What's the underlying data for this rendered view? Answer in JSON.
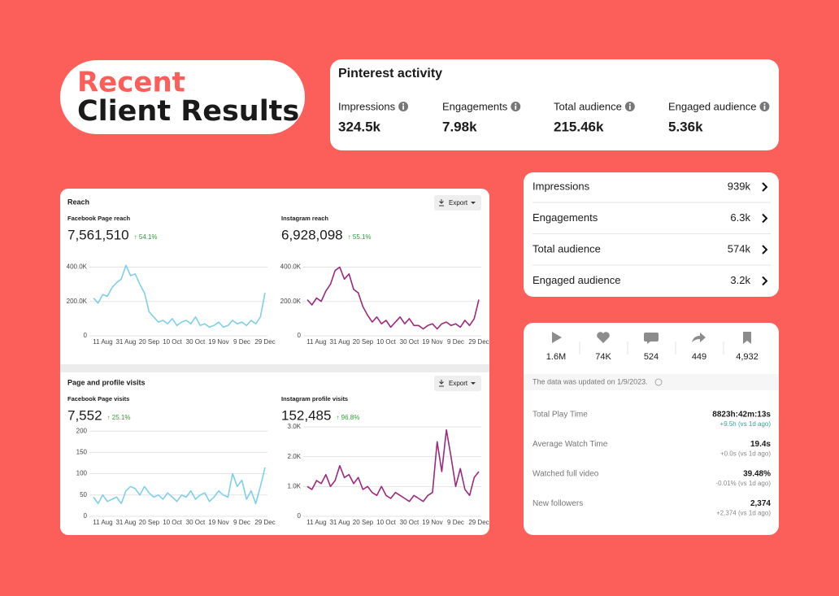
{
  "header": {
    "line1": "Recent",
    "line2": "Client Results"
  },
  "pinterest": {
    "title": "Pinterest activity",
    "metrics": [
      {
        "label": "Impressions",
        "value": "324.5k"
      },
      {
        "label": "Engagements",
        "value": "7.98k"
      },
      {
        "label": "Total audience",
        "value": "215.46k"
      },
      {
        "label": "Engaged audience",
        "value": "5.36k"
      }
    ]
  },
  "summary_list": [
    {
      "label": "Impressions",
      "value": "939k"
    },
    {
      "label": "Engagements",
      "value": "6.3k"
    },
    {
      "label": "Total audience",
      "value": "574k"
    },
    {
      "label": "Engaged audience",
      "value": "3.2k"
    }
  ],
  "tiktok": {
    "counts": [
      "1.6M",
      "74K",
      "524",
      "449",
      "4,932"
    ],
    "note": "The data was updated on 1/9/2023.",
    "rows": [
      {
        "label": "Total Play Time",
        "value": "8823h:42m:13s",
        "delta": "+9.5h (vs 1d ago)"
      },
      {
        "label": "Average Watch Time",
        "value": "19.4s",
        "delta": "+0.0s (vs 1d ago)"
      },
      {
        "label": "Watched full video",
        "value": "39.48%",
        "delta": "-0.01% (vs 1d ago)"
      },
      {
        "label": "New followers",
        "value": "2,374",
        "delta": "+2,374 (vs 1d ago)"
      }
    ]
  },
  "meta_panel": {
    "section1": "Reach",
    "section2": "Page and profile visits",
    "export": "Export"
  },
  "chart_data": [
    {
      "type": "line",
      "title": "Facebook Page reach",
      "total": "7,561,510",
      "change": "↑ 54.1%",
      "color": "#7fcfe8",
      "categories": [
        null,
        null,
        "11 Aug",
        null,
        null,
        null,
        null,
        "31 Aug",
        null,
        null,
        null,
        null,
        "20 Sep",
        null,
        null,
        null,
        null,
        "10 Oct",
        null,
        null,
        null,
        null,
        "30 Oct",
        null,
        null,
        null,
        null,
        "19 Nov",
        null,
        null,
        null,
        null,
        "9 Dec",
        null,
        null,
        null,
        null,
        "29 Dec"
      ],
      "values": [
        220000,
        190000,
        240000,
        230000,
        280000,
        310000,
        330000,
        410000,
        350000,
        360000,
        300000,
        250000,
        140000,
        110000,
        80000,
        90000,
        70000,
        100000,
        60000,
        80000,
        90000,
        70000,
        110000,
        60000,
        70000,
        50000,
        60000,
        80000,
        50000,
        60000,
        90000,
        70000,
        80000,
        60000,
        90000,
        70000,
        110000,
        250000
      ],
      "ylim": [
        0,
        440000
      ],
      "yticks": [
        0,
        {
          "value": 200000,
          "label": "200.0K"
        },
        {
          "value": 400000,
          "label": "400.0K"
        }
      ],
      "grid": true
    },
    {
      "type": "line",
      "title": "Instagram reach",
      "total": "6,928,098",
      "change": "↑ 55.1%",
      "color": "#9b2a7d",
      "categories": [
        null,
        null,
        "11 Aug",
        null,
        null,
        null,
        null,
        "31 Aug",
        null,
        null,
        null,
        null,
        "20 Sep",
        null,
        null,
        null,
        null,
        "10 Oct",
        null,
        null,
        null,
        null,
        "30 Oct",
        null,
        null,
        null,
        null,
        "19 Nov",
        null,
        null,
        null,
        null,
        "9 Dec",
        null,
        null,
        null,
        null,
        "29 Dec"
      ],
      "values": [
        210000,
        180000,
        220000,
        200000,
        260000,
        300000,
        380000,
        400000,
        330000,
        360000,
        270000,
        250000,
        170000,
        120000,
        80000,
        110000,
        70000,
        90000,
        50000,
        80000,
        110000,
        70000,
        100000,
        60000,
        60000,
        40000,
        60000,
        70000,
        40000,
        70000,
        80000,
        60000,
        70000,
        50000,
        90000,
        60000,
        100000,
        210000
      ],
      "ylim": [
        0,
        440000
      ],
      "yticks": [
        0,
        {
          "value": 200000,
          "label": "200.0K"
        },
        {
          "value": 400000,
          "label": "400.0K"
        }
      ],
      "grid": true
    },
    {
      "type": "line",
      "title": "Facebook Page visits",
      "total": "7,552",
      "change": "↑ 25.1%",
      "color": "#7fcfe8",
      "categories": [
        null,
        null,
        "11 Aug",
        null,
        null,
        null,
        null,
        "31 Aug",
        null,
        null,
        null,
        null,
        "20 Sep",
        null,
        null,
        null,
        null,
        "10 Oct",
        null,
        null,
        null,
        null,
        "30 Oct",
        null,
        null,
        null,
        null,
        "19 Nov",
        null,
        null,
        null,
        null,
        "9 Dec",
        null,
        null,
        null,
        null,
        "29 Dec"
      ],
      "values": [
        45,
        30,
        50,
        35,
        40,
        45,
        30,
        60,
        70,
        65,
        50,
        70,
        55,
        45,
        50,
        40,
        55,
        45,
        35,
        50,
        45,
        60,
        40,
        50,
        55,
        35,
        45,
        60,
        50,
        45,
        100,
        70,
        85,
        40,
        60,
        30,
        70,
        115
      ],
      "ylim": [
        0,
        210
      ],
      "yticks": [
        0,
        50,
        100,
        150,
        200
      ],
      "grid": true
    },
    {
      "type": "line",
      "title": "Instagram profile visits",
      "total": "152,485",
      "change": "↑ 96.8%",
      "color": "#9b2a7d",
      "categories": [
        null,
        null,
        "11 Aug",
        null,
        null,
        null,
        null,
        "31 Aug",
        null,
        null,
        null,
        null,
        "20 Sep",
        null,
        null,
        null,
        null,
        "10 Oct",
        null,
        null,
        null,
        null,
        "30 Oct",
        null,
        null,
        null,
        null,
        "19 Nov",
        null,
        null,
        null,
        null,
        "9 Dec",
        null,
        null,
        null,
        null,
        "29 Dec"
      ],
      "values": [
        1000,
        900,
        1200,
        1100,
        1400,
        1000,
        1200,
        1700,
        1300,
        1400,
        1100,
        1300,
        900,
        1000,
        800,
        700,
        1000,
        700,
        600,
        800,
        700,
        600,
        500,
        700,
        600,
        500,
        700,
        800,
        2500,
        1500,
        2900,
        2000,
        1000,
        1600,
        900,
        700,
        1300,
        1500
      ],
      "ylim": [
        0,
        3000
      ],
      "yticks": [
        0,
        {
          "value": 1000,
          "label": "1.0K"
        },
        {
          "value": 2000,
          "label": "2.0K"
        },
        {
          "value": 3000,
          "label": "3.0K"
        }
      ],
      "grid": true
    }
  ]
}
